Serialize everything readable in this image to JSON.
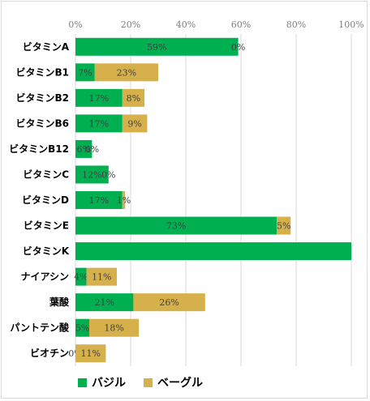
{
  "chart_data": {
    "type": "bar",
    "orientation": "horizontal",
    "stacked": true,
    "categories": [
      "ビタミンA",
      "ビタミンB1",
      "ビタミンB2",
      "ビタミンB6",
      "ビタミンB12",
      "ビタミンC",
      "ビタミンD",
      "ビタミンE",
      "ビタミンK",
      "ナイアシン",
      "葉酸",
      "パントテン酸",
      "ビオチン"
    ],
    "series": [
      {
        "name": "バジル",
        "color": "#00b050",
        "values": [
          59,
          7,
          17,
          17,
          6,
          12,
          17,
          73,
          100,
          4,
          21,
          5,
          0
        ],
        "labels": [
          "59%",
          "7%",
          "17%",
          "17%",
          "6%",
          "12%",
          "17%",
          "73%",
          "",
          "4%",
          "21%",
          "5%",
          "0%"
        ]
      },
      {
        "name": "ベーグル",
        "color": "#d6b04b",
        "values": [
          0,
          23,
          8,
          9,
          0,
          0,
          1,
          5,
          0,
          11,
          26,
          18,
          11
        ],
        "labels": [
          "0%",
          "23%",
          "8%",
          "9%",
          "0%",
          "0%",
          "1%",
          "5%",
          "",
          "11%",
          "26%",
          "18%",
          "11%"
        ]
      }
    ],
    "xlim": [
      0,
      100
    ],
    "xticks": [
      "0%",
      "20%",
      "40%",
      "60%",
      "80%",
      "100%"
    ],
    "xtick_values": [
      0,
      20,
      40,
      60,
      80,
      100
    ],
    "grid": true,
    "legend": "bottom"
  }
}
